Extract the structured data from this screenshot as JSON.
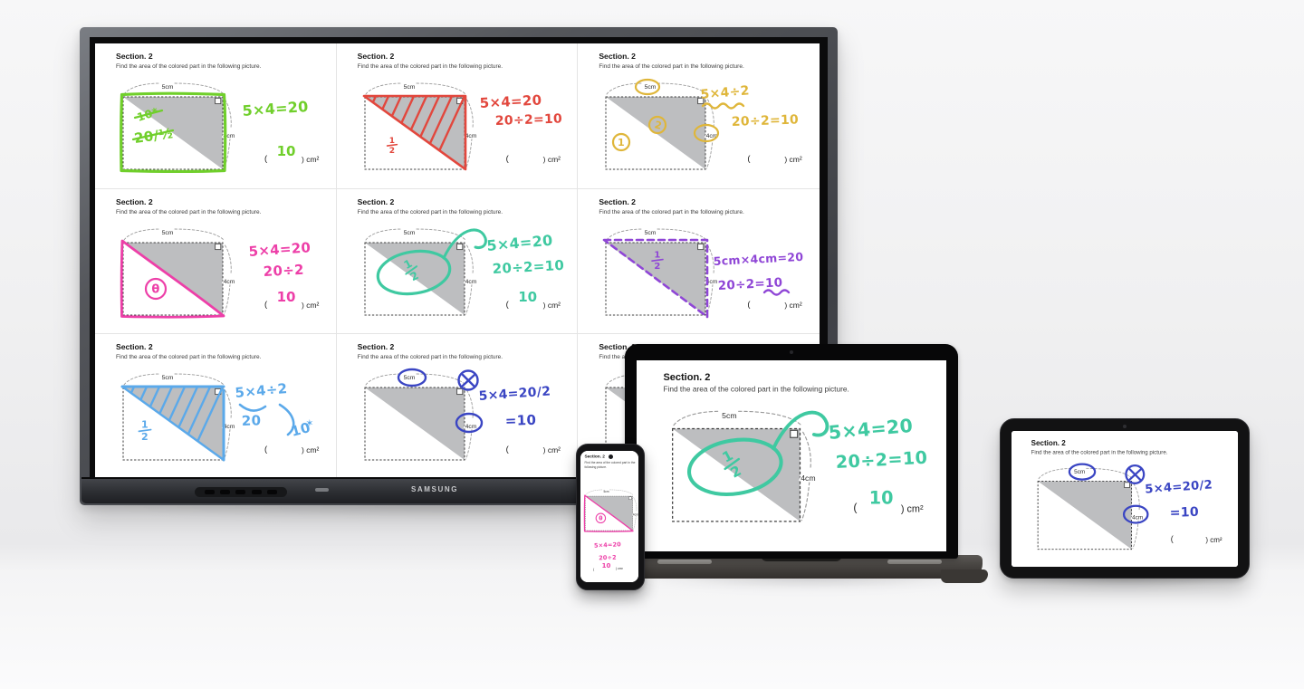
{
  "scene": {
    "background_wall": "#f0f0f1",
    "background_floor": "#fbfbfc"
  },
  "display": {
    "brand": "SAMSUNG"
  },
  "worksheet": {
    "section_title": "Section. 2",
    "instruction": "Find the area of the colored part in the following picture.",
    "top_dim_label": "5cm",
    "right_dim_label": "4cm",
    "answer_prefix": "(",
    "answer_suffix": ") cm²"
  },
  "cells": [
    {
      "id": "green",
      "color": "#70cf2b",
      "style": "rect_outline",
      "scratch": [
        "10*",
        "20/½"
      ],
      "work": [
        "5×4=20"
      ],
      "answer": "10"
    },
    {
      "id": "red",
      "color": "#e2473d",
      "style": "hatch",
      "fraction": "1/2",
      "work": [
        "5×4=20",
        "20÷2=10"
      ],
      "answer": ""
    },
    {
      "id": "yellow",
      "color": "#dfb63a",
      "style": "circle_dims",
      "circled_marks": [
        "2",
        "1"
      ],
      "work": [
        "5×4÷2",
        "20÷2=10"
      ],
      "answer": ""
    },
    {
      "id": "pink",
      "color": "#ed3fa8",
      "style": "lower_outline",
      "mark": "θ",
      "work": [
        "5×4=20",
        "20÷2"
      ],
      "answer": "10"
    },
    {
      "id": "teal",
      "color": "#3fc9a1",
      "style": "ellipse_loop",
      "fraction": "1/2",
      "work": [
        "5×4=20",
        "20÷2=10"
      ],
      "answer": "10"
    },
    {
      "id": "purple",
      "color": "#8f46d6",
      "style": "dashed_triangle",
      "fraction": "1/2",
      "work": [
        "5cm×4cm=20",
        "20÷2=10"
      ],
      "answer": ""
    },
    {
      "id": "blue",
      "color": "#5ba9ea",
      "style": "hatch_curls",
      "fraction": "1/2",
      "work": [
        "5×4÷2",
        "20",
        "10"
      ],
      "star": "✶",
      "answer": ""
    },
    {
      "id": "navy",
      "color": "#3a45c3",
      "style": "circle_dims_x",
      "mark": "×",
      "work": [
        "5×4=20/2",
        "=10"
      ],
      "answer": ""
    },
    {
      "id": "hidden",
      "color": "#888888",
      "style": "none",
      "work": [],
      "answer": ""
    }
  ],
  "device_screens": {
    "display_grid_cells": [
      0,
      1,
      2,
      3,
      4,
      5,
      6,
      7,
      8
    ],
    "laptop_cell": 4,
    "phone_cell": 3,
    "tablet_cell": 7
  }
}
